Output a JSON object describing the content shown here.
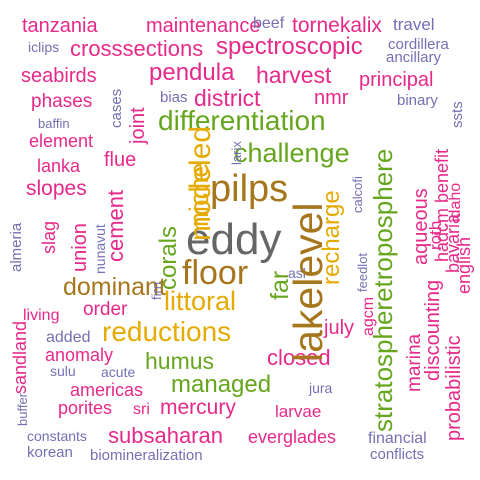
{
  "palette": {
    "pink": "#e7298a",
    "purple": "#7570b3",
    "green": "#66a61e",
    "gold": "#e6ab02",
    "brown": "#a6761d",
    "gray": "#666666"
  },
  "words": {
    "tanzania": "tanzania",
    "maintenance": "maintenance",
    "beef": "beef",
    "tornekalix": "tornekalix",
    "travel": "travel",
    "iclips": "iclips",
    "crosssections": "crosssections",
    "spectroscopic": "spectroscopic",
    "cordillera": "cordillera",
    "ancillary": "ancillary",
    "seabirds": "seabirds",
    "pendula": "pendula",
    "harvest": "harvest",
    "principal": "principal",
    "phases": "phases",
    "bias": "bias",
    "district": "district",
    "nmr": "nmr",
    "binary": "binary",
    "baffin": "baffin",
    "differentiation": "differentiation",
    "element": "element",
    "lanka": "lanka",
    "flue": "flue",
    "challenge": "challenge",
    "slopes": "slopes",
    "pilps": "pilps",
    "eddy": "eddy",
    "floor": "floor",
    "dominant": "dominant",
    "littoral": "littoral",
    "order": "order",
    "living": "living",
    "reductions": "reductions",
    "added": "added",
    "july": "july",
    "asl": "asl",
    "humus": "humus",
    "anomaly": "anomaly",
    "closed": "closed",
    "managed": "managed",
    "sulu": "sulu",
    "acute": "acute",
    "americas": "americas",
    "jura": "jura",
    "porites": "porites",
    "sri": "sri",
    "mercury": "mercury",
    "larvae": "larvae",
    "constants": "constants",
    "subsaharan": "subsaharan",
    "everglades": "everglades",
    "financial": "financial",
    "korean": "korean",
    "biomineralization": "biomineralization",
    "conflicts": "conflicts",
    "cases": "cases",
    "joint": "joint",
    "corals": "corals",
    "modeled": "modeled",
    "niche": "niche",
    "larix": "larix",
    "far": "far",
    "lakelevel": "lakelevel",
    "recharge": "recharge",
    "calcofi": "calcofi",
    "feedlot": "feedlot",
    "agcm": "agcm",
    "stratospheretroposphere": "stratospheretroposphere",
    "marina": "marina",
    "aqueous": "aqueous",
    "discounting": "discounting",
    "roth": "roth",
    "benefit": "benefit",
    "bavaria": "bavaria",
    "hadcm": "hadcm",
    "probabilistic": "probabilistic",
    "ssts": "ssts",
    "idaho": "idaho",
    "english": "english",
    "almeria": "almeria",
    "slag": "slag",
    "union": "union",
    "nunavut": "nunavut",
    "cement": "cement",
    "firn": "firn",
    "sandland": "sandland",
    "buffer": "buffer"
  }
}
